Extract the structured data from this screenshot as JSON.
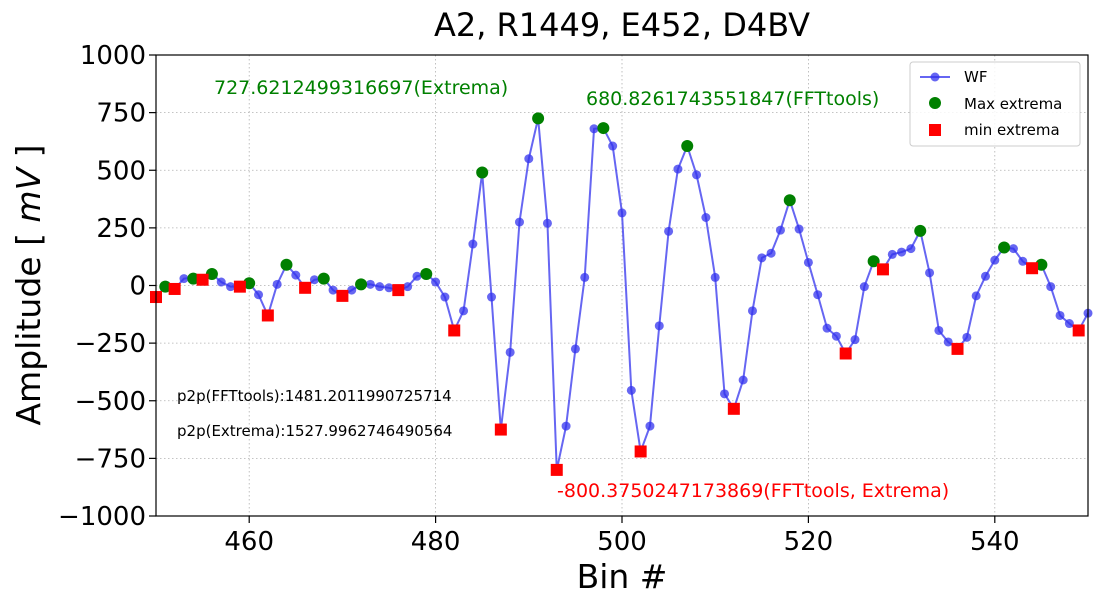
{
  "chart_data": {
    "type": "line",
    "title": "A2, R1449, E452, D4BV",
    "xlabel": "Bin #",
    "ylabel_prefix": "Amplitude [ ",
    "ylabel_unit": "mV",
    "ylabel_suffix": " ]",
    "xlim": [
      450,
      550
    ],
    "ylim": [
      -1000,
      1000
    ],
    "xticks": [
      460,
      480,
      500,
      520,
      540
    ],
    "yticks": [
      -1000,
      -750,
      -500,
      -250,
      0,
      250,
      500,
      750,
      1000
    ],
    "xtick_labels": [
      "460",
      "480",
      "500",
      "520",
      "540"
    ],
    "ytick_labels": [
      "−1000",
      "−750",
      "−500",
      "−250",
      "0",
      "250",
      "500",
      "750",
      "1000"
    ],
    "grid": true,
    "legend_position": "top-right",
    "series": [
      {
        "name": "WF",
        "color": "#3333ee",
        "x": [
          450,
          451,
          452,
          453,
          454,
          455,
          456,
          457,
          458,
          459,
          460,
          461,
          462,
          463,
          464,
          465,
          466,
          467,
          468,
          469,
          470,
          471,
          472,
          473,
          474,
          475,
          476,
          477,
          478,
          479,
          480,
          481,
          482,
          483,
          484,
          485,
          486,
          487,
          488,
          489,
          490,
          491,
          492,
          493,
          494,
          495,
          496,
          497,
          498,
          499,
          500,
          501,
          502,
          503,
          504,
          505,
          506,
          507,
          508,
          509,
          510,
          511,
          512,
          513,
          514,
          515,
          516,
          517,
          518,
          519,
          520,
          521,
          522,
          523,
          524,
          525,
          526,
          527,
          528,
          529,
          530,
          531,
          532,
          533,
          534,
          535,
          536,
          537,
          538,
          539,
          540,
          541,
          542,
          543,
          544,
          545,
          546,
          547,
          548,
          549,
          550
        ],
        "y": [
          -50,
          -5,
          -15,
          30,
          35,
          25,
          50,
          15,
          -5,
          -5,
          10,
          -40,
          -130,
          5,
          90,
          45,
          -10,
          25,
          30,
          -20,
          -45,
          -20,
          5,
          5,
          -5,
          -10,
          -20,
          -5,
          40,
          50,
          15,
          -50,
          -195,
          -110,
          180,
          490,
          -50,
          -625,
          -290,
          275,
          550,
          725,
          270,
          -800,
          -610,
          -275,
          35,
          680,
          683,
          605,
          315,
          -455,
          -720,
          -610,
          -175,
          235,
          505,
          605,
          480,
          295,
          35,
          -470,
          -535,
          -410,
          -110,
          120,
          140,
          240,
          370,
          245,
          100,
          -40,
          -185,
          -220,
          -295,
          -235,
          -5,
          105,
          70,
          135,
          145,
          160,
          237,
          55,
          -195,
          -245,
          -275,
          -225,
          -45,
          40,
          110,
          165,
          160,
          105,
          75,
          90,
          -5,
          -130,
          -165,
          -195,
          -120
        ]
      },
      {
        "name": "Max extrema",
        "color": "#008000",
        "x": [
          451,
          454,
          456,
          460,
          464,
          468,
          472,
          479,
          485,
          491,
          498,
          507,
          518,
          527,
          532,
          541,
          545
        ],
        "y": [
          -5,
          30,
          50,
          10,
          90,
          30,
          5,
          50,
          490,
          725,
          683,
          605,
          370,
          105,
          237,
          165,
          90
        ]
      },
      {
        "name": "min extrema",
        "color": "#ff0000",
        "x": [
          450,
          452,
          455,
          459,
          462,
          466,
          470,
          476,
          482,
          487,
          493,
          502,
          512,
          524,
          528,
          536,
          544,
          549
        ],
        "y": [
          -50,
          -15,
          25,
          -5,
          -130,
          -10,
          -45,
          -20,
          -195,
          -625,
          -800,
          -720,
          -535,
          -295,
          70,
          -275,
          75,
          -195
        ]
      }
    ],
    "annotations": [
      {
        "text": "727.6212499316697(Extrema)",
        "color": "#008000"
      },
      {
        "text": "680.8261743551847(FFTtools)",
        "color": "#008000"
      },
      {
        "text": "-800.3750247173869(FFTtools, Extrema)",
        "color": "#ff0000"
      },
      {
        "text": "p2p(FFTtools):1481.2011990725714",
        "color": "#000000"
      },
      {
        "text": "p2p(Extrema):1527.9962746490564",
        "color": "#000000"
      }
    ]
  }
}
